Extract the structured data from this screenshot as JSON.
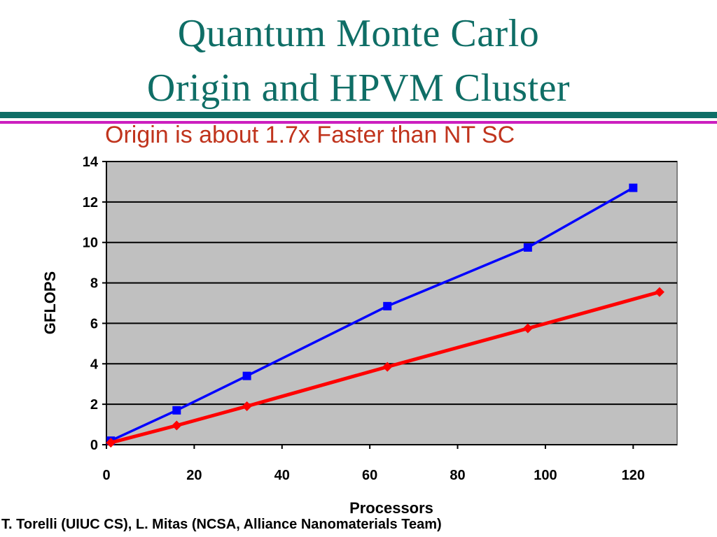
{
  "slide": {
    "title_line1": "Quantum Monte Carlo",
    "title_line2": "Origin and HPVM Cluster",
    "credit": "T. Torelli (UIUC CS), L. Mitas (NCSA, Alliance Nanomaterials Team)",
    "colors": {
      "title": "#0f6e66",
      "rule_primary": "#0f6e66",
      "rule_secondary": "#cc1fbf",
      "subtitle": "#c0341d"
    }
  },
  "chart_data": {
    "type": "line",
    "title": "Origin is about 1.7x Faster than NT SC",
    "xlabel": "Processors",
    "ylabel": "GFLOPS",
    "xlim": [
      0,
      130
    ],
    "ylim": [
      0,
      14
    ],
    "xticks": [
      0,
      20,
      40,
      60,
      80,
      100,
      120
    ],
    "yticks": [
      0,
      2,
      4,
      6,
      8,
      10,
      12,
      14
    ],
    "grid": "horizontal",
    "plot_background": "#c0c0c0",
    "legend": "none",
    "series": [
      {
        "color": "#0000ff",
        "marker": "square",
        "x": [
          1,
          16,
          32,
          64,
          96,
          120
        ],
        "y": [
          0.2,
          1.7,
          3.4,
          6.85,
          9.75,
          12.7
        ]
      },
      {
        "color": "#ff0000",
        "marker": "diamond",
        "x": [
          1,
          16,
          32,
          64,
          96,
          126
        ],
        "y": [
          0.1,
          0.95,
          1.9,
          3.85,
          5.75,
          7.55
        ]
      }
    ]
  }
}
